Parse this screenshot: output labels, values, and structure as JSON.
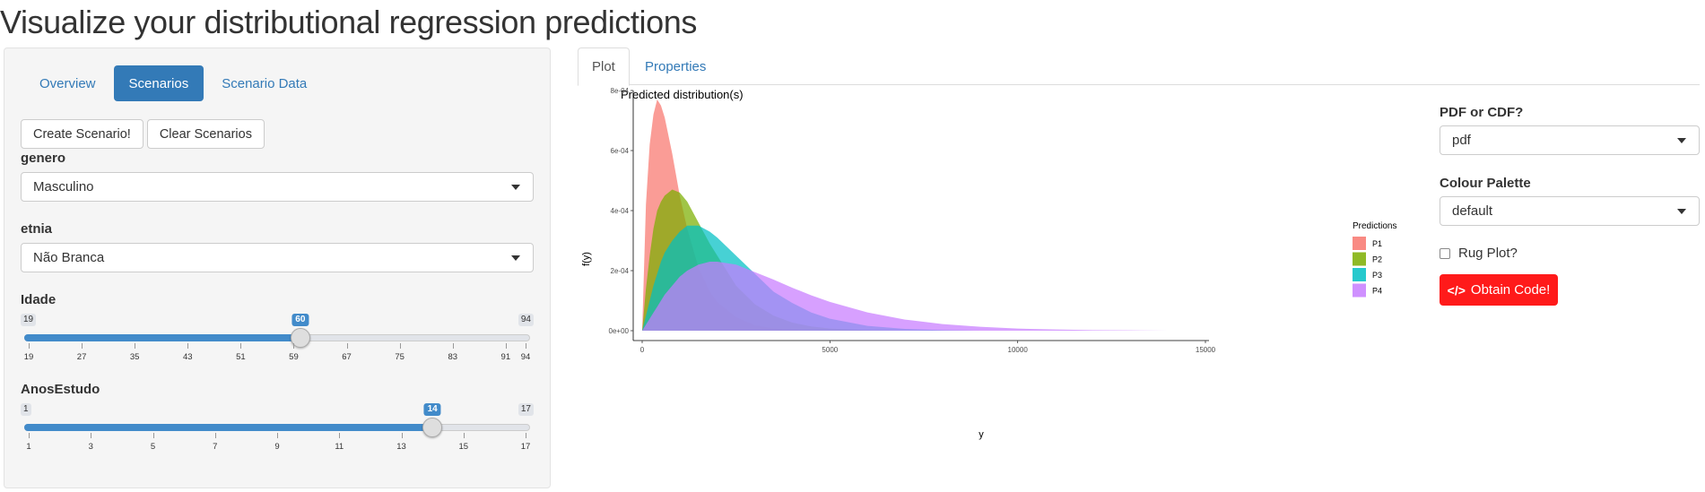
{
  "app": {
    "title": "Visualize your distributional regression predictions"
  },
  "sidebar": {
    "tabs": [
      {
        "label": "Overview",
        "active": false
      },
      {
        "label": "Scenarios",
        "active": true
      },
      {
        "label": "Scenario Data",
        "active": false
      }
    ],
    "buttons": {
      "create": "Create Scenario!",
      "clear": "Clear Scenarios"
    },
    "genero": {
      "label": "genero",
      "value": "Masculino"
    },
    "etnia": {
      "label": "etnia",
      "value": "Não Branca"
    },
    "idade": {
      "label": "Idade",
      "min": 19,
      "max": 94,
      "value": 60,
      "min_label": "19",
      "max_label": "94",
      "value_label": "60",
      "ticks": [
        19,
        27,
        35,
        43,
        51,
        59,
        67,
        75,
        83,
        91,
        94
      ],
      "tick_labels": [
        "19",
        "27",
        "35",
        "43",
        "51",
        "59",
        "67",
        "75",
        "83",
        "91",
        "94"
      ]
    },
    "anos": {
      "label": "AnosEstudo",
      "min": 1,
      "max": 17,
      "value": 14,
      "min_label": "1",
      "max_label": "17",
      "value_label": "14",
      "ticks": [
        1,
        3,
        5,
        7,
        9,
        11,
        13,
        15,
        17
      ],
      "tick_labels": [
        "1",
        "3",
        "5",
        "7",
        "9",
        "11",
        "13",
        "15",
        "17"
      ]
    }
  },
  "main": {
    "tabs": [
      {
        "label": "Plot",
        "active": true
      },
      {
        "label": "Properties",
        "active": false
      }
    ]
  },
  "controls": {
    "pdf_cdf": {
      "label": "PDF or CDF?",
      "value": "pdf"
    },
    "palette": {
      "label": "Colour Palette",
      "value": "default"
    },
    "rug": {
      "label": "Rug Plot?",
      "checked": false
    },
    "obtain_code": {
      "label": "Obtain Code!",
      "icon": "code-icon"
    }
  },
  "colors": {
    "accent": "#337ab7",
    "slider": "#428bca",
    "code_button": "#ff1a1a"
  },
  "chart_data": {
    "type": "area",
    "title": "Predicted distribution(s)",
    "xlabel": "y",
    "ylabel": "f(y)",
    "xlim": [
      0,
      15000
    ],
    "ylim": [
      0,
      0.0008
    ],
    "x_ticks": [
      0,
      5000,
      10000,
      15000
    ],
    "x_tick_labels": [
      "0",
      "5000",
      "10000",
      "15000"
    ],
    "y_ticks": [
      0,
      0.0002,
      0.0004,
      0.0006,
      0.0008
    ],
    "y_tick_labels": [
      "0e+00",
      "2e-04",
      "4e-04",
      "6e-04",
      "8e-04"
    ],
    "legend": {
      "title": "Predictions",
      "position": "right"
    },
    "x": [
      0,
      100,
      200,
      300,
      400,
      500,
      600,
      800,
      1000,
      1200,
      1500,
      1800,
      2000,
      2500,
      3000,
      3500,
      4000,
      4500,
      5000,
      6000,
      7000,
      8000,
      9000,
      10000,
      11000,
      12000,
      13000,
      14000,
      14500
    ],
    "series": [
      {
        "name": "P1",
        "color": "#f8766d",
        "values": [
          0,
          0.00042,
          0.00062,
          0.00072,
          0.00077,
          0.00075,
          0.00071,
          0.00059,
          0.00045,
          0.00034,
          0.00021,
          0.00013,
          9.5e-05,
          4.5e-05,
          1.8e-05,
          7e-06,
          3e-06,
          0,
          0,
          0,
          0,
          0,
          0,
          0,
          0,
          0,
          0,
          0,
          0
        ]
      },
      {
        "name": "P2",
        "color": "#7cae00",
        "values": [
          0,
          0.00014,
          0.00025,
          0.00034,
          0.0004,
          0.00043,
          0.00045,
          0.00047,
          0.00046,
          0.00043,
          0.00036,
          0.00029,
          0.00025,
          0.00015,
          8.8e-05,
          5e-05,
          2.7e-05,
          1.4e-05,
          7e-06,
          2e-06,
          0,
          0,
          0,
          0,
          0,
          0,
          0,
          0,
          0
        ]
      },
      {
        "name": "P3",
        "color": "#00bfc4",
        "values": [
          0,
          5e-05,
          0.0001,
          0.00015,
          0.00019,
          0.00023,
          0.00026,
          0.0003,
          0.00033,
          0.00035,
          0.00035,
          0.00033,
          0.00031,
          0.00025,
          0.00019,
          0.00013,
          9.2e-05,
          6.1e-05,
          4e-05,
          1.6e-05,
          6e-06,
          2e-06,
          0,
          0,
          0,
          0,
          0,
          0,
          0
        ]
      },
      {
        "name": "P4",
        "color": "#c77cff",
        "values": [
          0,
          2e-05,
          4e-05,
          6e-05,
          8e-05,
          0.0001,
          0.00012,
          0.00015,
          0.00018,
          0.0002,
          0.00022,
          0.00023,
          0.00023,
          0.00022,
          0.000195,
          0.00017,
          0.000143,
          0.000118,
          9.6e-05,
          6.1e-05,
          3.7e-05,
          2.2e-05,
          1.3e-05,
          7e-06,
          4e-06,
          2e-06,
          1e-06,
          0,
          0
        ]
      }
    ]
  }
}
